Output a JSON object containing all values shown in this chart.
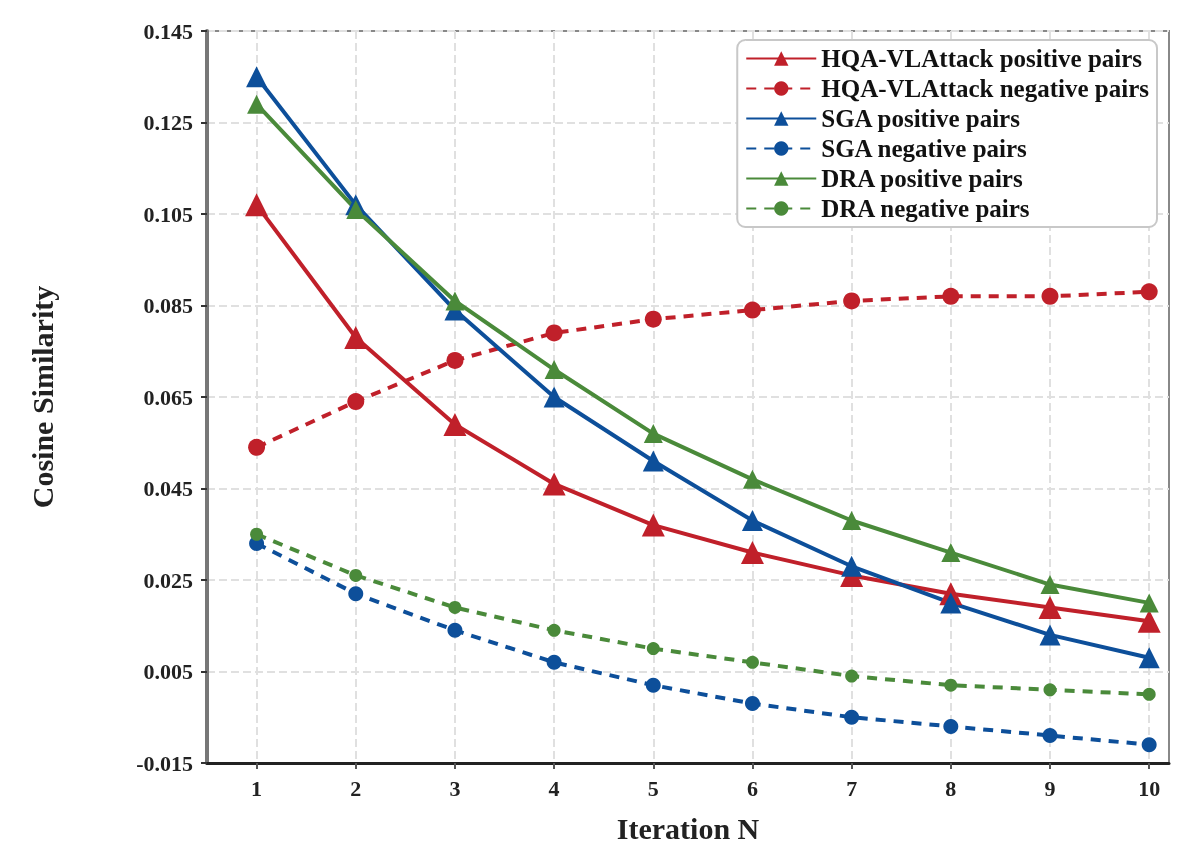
{
  "chart_data": {
    "type": "line",
    "xlabel": "Iteration N",
    "ylabel": "Cosine Similarity",
    "x": [
      1,
      2,
      3,
      4,
      5,
      6,
      7,
      8,
      9,
      10
    ],
    "xlim": [
      0.5,
      10.2
    ],
    "xticks": [
      1,
      2,
      3,
      4,
      5,
      6,
      7,
      8,
      9,
      10
    ],
    "ylim": [
      -0.015,
      0.145
    ],
    "yticks": [
      -0.015,
      0.005,
      0.025,
      0.045,
      0.065,
      0.085,
      0.105,
      0.125,
      0.145
    ],
    "grid": true,
    "legend": "top right",
    "series": [
      {
        "name": "HQA-VLAttack positive pairs",
        "color": "#c0202a",
        "marker": "triangle",
        "line_style": "solid",
        "values": [
          0.107,
          0.078,
          0.059,
          0.046,
          0.037,
          0.031,
          0.026,
          0.022,
          0.019,
          0.016
        ]
      },
      {
        "name": "HQA-VLAttack negative pairs",
        "color": "#c0202a",
        "marker": "circle",
        "line_style": "dashed",
        "values": [
          0.054,
          0.064,
          0.073,
          0.079,
          0.082,
          0.084,
          0.086,
          0.087,
          0.087,
          0.088
        ]
      },
      {
        "name": "SGA positive pairs",
        "color": "#0d4f9a",
        "marker": "triangle",
        "line_style": "solid",
        "values": [
          0.135,
          0.107,
          0.084,
          0.065,
          0.051,
          0.038,
          0.028,
          0.02,
          0.013,
          0.008
        ]
      },
      {
        "name": "SGA negative pairs",
        "color": "#0d4f9a",
        "marker": "circle",
        "line_style": "dashed",
        "values": [
          0.033,
          0.022,
          0.014,
          0.007,
          0.002,
          -0.002,
          -0.005,
          -0.007,
          -0.009,
          -0.011
        ]
      },
      {
        "name": "DRA positive pairs",
        "color": "#4a8a3a",
        "marker": "triangle",
        "line_style": "solid",
        "values": [
          0.129,
          0.106,
          0.086,
          0.071,
          0.057,
          0.047,
          0.038,
          0.031,
          0.024,
          0.02
        ]
      },
      {
        "name": "DRA negative pairs",
        "color": "#4a8a3a",
        "marker": "circle",
        "line_style": "dashed",
        "values": [
          0.035,
          0.026,
          0.019,
          0.014,
          0.01,
          0.007,
          0.004,
          0.002,
          0.001,
          0.0
        ]
      }
    ]
  }
}
